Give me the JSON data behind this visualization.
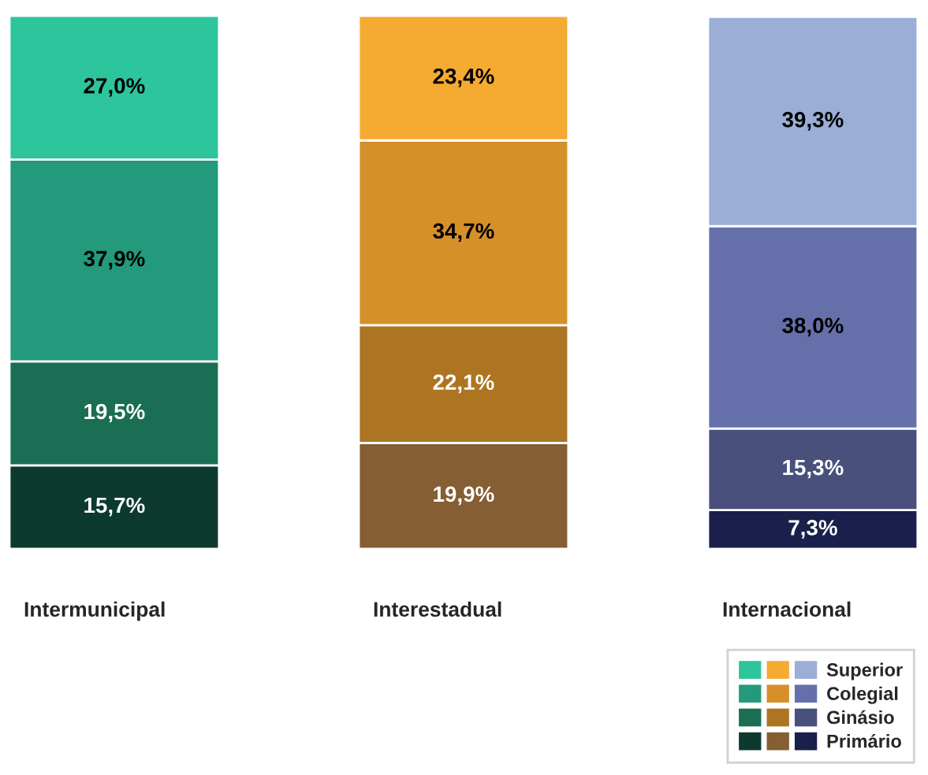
{
  "chart_data": {
    "type": "bar",
    "stacked": true,
    "categories": [
      "Intermunicipal",
      "Interestadual",
      "Internacional"
    ],
    "series": [
      {
        "name": "Primário",
        "colors": [
          "#0d3a2e",
          "#855e34",
          "#1a1f4b"
        ],
        "values": [
          15.7,
          19.9,
          7.3
        ],
        "value_labels": [
          "15,7%",
          "19,9%",
          "7,3%"
        ]
      },
      {
        "name": "Ginásio",
        "colors": [
          "#1a6e53",
          "#ad7522",
          "#48507b"
        ],
        "values": [
          19.5,
          22.1,
          15.3
        ],
        "value_labels": [
          "19,5%",
          "22,1%",
          "15,3%"
        ]
      },
      {
        "name": "Colegial",
        "colors": [
          "#229a7b",
          "#d6902a",
          "#6570ab"
        ],
        "values": [
          37.9,
          34.7,
          38.0
        ],
        "value_labels": [
          "37,9%",
          "34,7%",
          "38,0%"
        ]
      },
      {
        "name": "Superior",
        "colors": [
          "#2dc59b",
          "#f5aa32",
          "#9aaed6"
        ],
        "values": [
          27.0,
          23.4,
          39.3
        ],
        "value_labels": [
          "27,0%",
          "23,4%",
          "39,3%"
        ]
      }
    ],
    "tick_labels": "x",
    "legend": "bottom right"
  }
}
